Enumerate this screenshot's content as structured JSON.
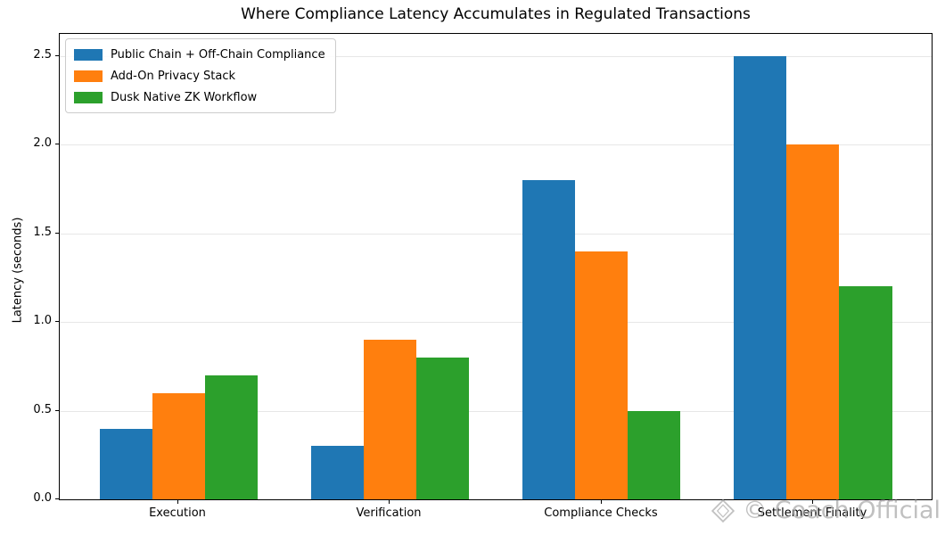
{
  "figure": {
    "watermark": {
      "icon": "diamond-logo-icon",
      "text": "© Coach Official",
      "color": "#a9a9a9"
    }
  },
  "chart_data": {
    "type": "bar",
    "title": "Where Compliance Latency Accumulates in Regulated Transactions",
    "categories": [
      "Execution",
      "Verification",
      "Compliance Checks",
      "Settlement Finality"
    ],
    "series": [
      {
        "name": "Public Chain + Off-Chain Compliance",
        "color": "#1f77b4",
        "values": [
          0.4,
          0.3,
          1.8,
          2.5
        ]
      },
      {
        "name": "Add-On Privacy Stack",
        "color": "#ff7f0e",
        "values": [
          0.6,
          0.9,
          1.4,
          2.0
        ]
      },
      {
        "name": "Dusk Native ZK Workflow",
        "color": "#2ca02c",
        "values": [
          0.7,
          0.8,
          0.5,
          1.2
        ]
      }
    ],
    "xlabel": "",
    "ylabel": "Latency (seconds)",
    "ylim": [
      0,
      2.625
    ],
    "yticks": [
      0.0,
      0.5,
      1.0,
      1.5,
      2.0,
      2.5
    ],
    "grid": "horizontal",
    "legend_position": "upper-left",
    "bar_group_width": 0.75,
    "spine_color": "#000000",
    "grid_color": "#e7e7e7"
  }
}
